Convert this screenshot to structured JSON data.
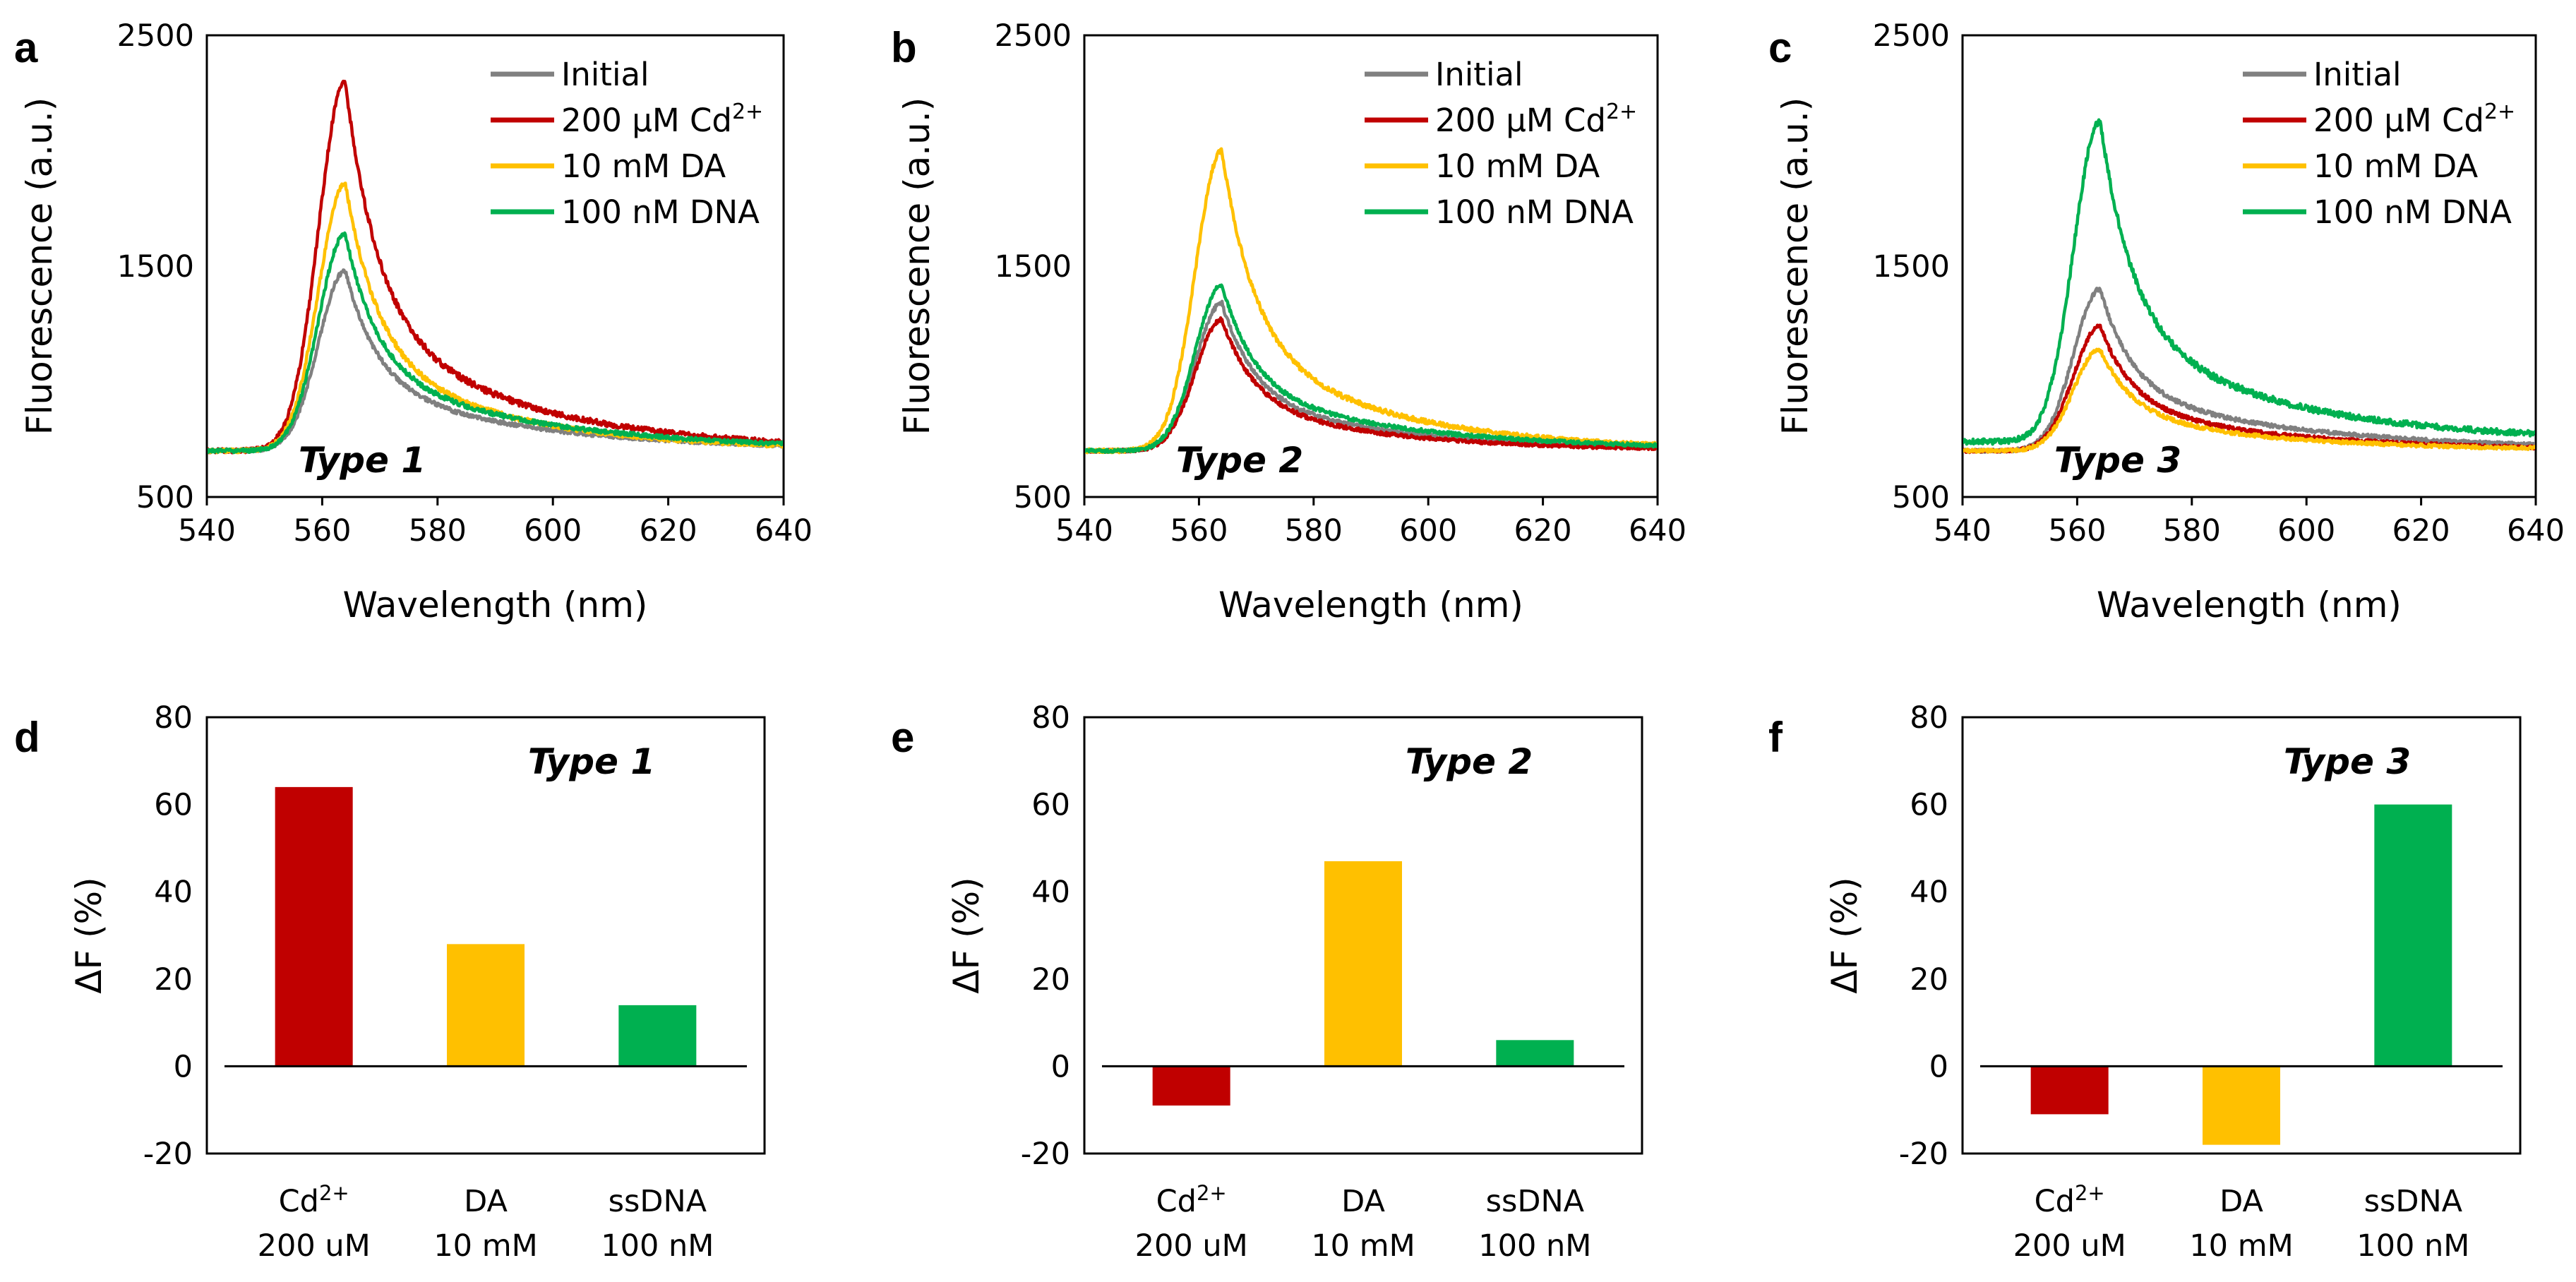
{
  "figure": {
    "panels": [
      {
        "letter": "a",
        "kind": "spectrum",
        "chart": 0
      },
      {
        "letter": "b",
        "kind": "spectrum",
        "chart": 1
      },
      {
        "letter": "c",
        "kind": "spectrum",
        "chart": 2
      },
      {
        "letter": "d",
        "kind": "bar",
        "chart": 3
      },
      {
        "letter": "e",
        "kind": "bar",
        "chart": 4
      },
      {
        "letter": "f",
        "kind": "bar",
        "chart": 5
      }
    ]
  },
  "chart_data": [
    {
      "type": "line",
      "panel": "a",
      "annotation": "Type 1",
      "xlabel": "Wavelength (nm)",
      "ylabel": "Fluorescence (a.u.)",
      "xlim": [
        540,
        640
      ],
      "ylim": [
        500,
        2500
      ],
      "xticks": [
        540,
        560,
        580,
        600,
        620,
        640
      ],
      "yticks": [
        500,
        1500,
        2500
      ],
      "legend_position": "top-right",
      "series": [
        {
          "name": "Initial",
          "label_main": "Initial",
          "label_sup": "",
          "color": "#808080",
          "base": 700,
          "peak_wl": 564,
          "peak": 1480,
          "tail": 760,
          "noise": 10
        },
        {
          "name": "200 µM Cd2+",
          "label_main": "200 µM Cd",
          "label_sup": "2+",
          "color": "#C00000",
          "base": 700,
          "peak_wl": 564,
          "peak": 2300,
          "tail": 800,
          "noise": 14
        },
        {
          "name": "10 mM DA",
          "label_main": "10 mM DA",
          "label_sup": "",
          "color": "#FFC000",
          "base": 700,
          "peak_wl": 564,
          "peak": 1860,
          "tail": 760,
          "noise": 12
        },
        {
          "name": "100 nM DNA",
          "label_main": "100 nM DNA",
          "label_sup": "",
          "color": "#00B050",
          "base": 700,
          "peak_wl": 564,
          "peak": 1640,
          "tail": 780,
          "noise": 11
        }
      ]
    },
    {
      "type": "line",
      "panel": "b",
      "annotation": "Type 2",
      "xlabel": "Wavelength (nm)",
      "ylabel": "Fluorescence (a.u.)",
      "xlim": [
        540,
        640
      ],
      "ylim": [
        500,
        2500
      ],
      "xticks": [
        540,
        560,
        580,
        600,
        620,
        640
      ],
      "yticks": [
        500,
        1500,
        2500
      ],
      "legend_position": "top-right",
      "series": [
        {
          "name": "Initial",
          "label_main": "Initial",
          "label_sup": "",
          "color": "#808080",
          "base": 700,
          "peak_wl": 564,
          "peak": 1340,
          "tail": 740,
          "noise": 10
        },
        {
          "name": "200 µM Cd2+",
          "label_main": "200 µM Cd",
          "label_sup": "2+",
          "color": "#C00000",
          "base": 700,
          "peak_wl": 564,
          "peak": 1270,
          "tail": 730,
          "noise": 10
        },
        {
          "name": "10 mM DA",
          "label_main": "10 mM DA",
          "label_sup": "",
          "color": "#FFC000",
          "base": 700,
          "peak_wl": 564,
          "peak": 2000,
          "tail": 770,
          "noise": 12
        },
        {
          "name": "100 nM DNA",
          "label_main": "100 nM DNA",
          "label_sup": "",
          "color": "#00B050",
          "base": 700,
          "peak_wl": 564,
          "peak": 1420,
          "tail": 760,
          "noise": 10
        }
      ]
    },
    {
      "type": "line",
      "panel": "c",
      "annotation": "Type 3",
      "xlabel": "Wavelength (nm)",
      "ylabel": "Fluorescence (a.u.)",
      "xlim": [
        540,
        640
      ],
      "ylim": [
        500,
        2500
      ],
      "xticks": [
        540,
        560,
        580,
        600,
        620,
        640
      ],
      "yticks": [
        500,
        1500,
        2500
      ],
      "legend_position": "top-right",
      "series": [
        {
          "name": "Initial",
          "label_main": "Initial",
          "label_sup": "",
          "color": "#808080",
          "base": 700,
          "peak_wl": 564,
          "peak": 1400,
          "tail": 770,
          "noise": 10
        },
        {
          "name": "200 µM Cd2+",
          "label_main": "200 µM Cd",
          "label_sup": "2+",
          "color": "#C00000",
          "base": 700,
          "peak_wl": 564,
          "peak": 1240,
          "tail": 740,
          "noise": 10
        },
        {
          "name": "10 mM DA",
          "label_main": "10 mM DA",
          "label_sup": "",
          "color": "#FFC000",
          "base": 700,
          "peak_wl": 564,
          "peak": 1140,
          "tail": 730,
          "noise": 10
        },
        {
          "name": "100 nM DNA",
          "label_main": "100 nM DNA",
          "label_sup": "",
          "color": "#00B050",
          "base": 740,
          "peak_wl": 564,
          "peak": 2130,
          "tail": 830,
          "noise": 16
        }
      ]
    },
    {
      "type": "bar",
      "panel": "d",
      "annotation": "Type 1",
      "ylabel": "ΔF (%)",
      "ylim": [
        -20,
        80
      ],
      "yticks": [
        -20,
        0,
        20,
        40,
        60,
        80
      ],
      "categories": [
        {
          "name": "Cd2+",
          "label_main": "Cd",
          "label_sup": "2+",
          "label_sub": "200 uM"
        },
        {
          "name": "DA",
          "label_main": "DA",
          "label_sup": "",
          "label_sub": "10 mM"
        },
        {
          "name": "ssDNA",
          "label_main": "ssDNA",
          "label_sup": "",
          "label_sub": "100 nM"
        }
      ],
      "values": [
        64,
        28,
        14
      ],
      "colors": [
        "#C00000",
        "#FFC000",
        "#00B050"
      ]
    },
    {
      "type": "bar",
      "panel": "e",
      "annotation": "Type 2",
      "ylabel": "ΔF (%)",
      "ylim": [
        -20,
        80
      ],
      "yticks": [
        -20,
        0,
        20,
        40,
        60,
        80
      ],
      "categories": [
        {
          "name": "Cd2+",
          "label_main": "Cd",
          "label_sup": "2+",
          "label_sub": "200 uM"
        },
        {
          "name": "DA",
          "label_main": "DA",
          "label_sup": "",
          "label_sub": "10 mM"
        },
        {
          "name": "ssDNA",
          "label_main": "ssDNA",
          "label_sup": "",
          "label_sub": "100 nM"
        }
      ],
      "values": [
        -9,
        47,
        6
      ],
      "colors": [
        "#C00000",
        "#FFC000",
        "#00B050"
      ]
    },
    {
      "type": "bar",
      "panel": "f",
      "annotation": "Type 3",
      "ylabel": "ΔF (%)",
      "ylim": [
        -20,
        80
      ],
      "yticks": [
        -20,
        0,
        20,
        40,
        60,
        80
      ],
      "categories": [
        {
          "name": "Cd2+",
          "label_main": "Cd",
          "label_sup": "2+",
          "label_sub": "200 uM"
        },
        {
          "name": "DA",
          "label_main": "DA",
          "label_sup": "",
          "label_sub": "10 mM"
        },
        {
          "name": "ssDNA",
          "label_main": "ssDNA",
          "label_sup": "",
          "label_sub": "100 nM"
        }
      ],
      "values": [
        -11,
        -18,
        60
      ],
      "colors": [
        "#C00000",
        "#FFC000",
        "#00B050"
      ]
    }
  ]
}
